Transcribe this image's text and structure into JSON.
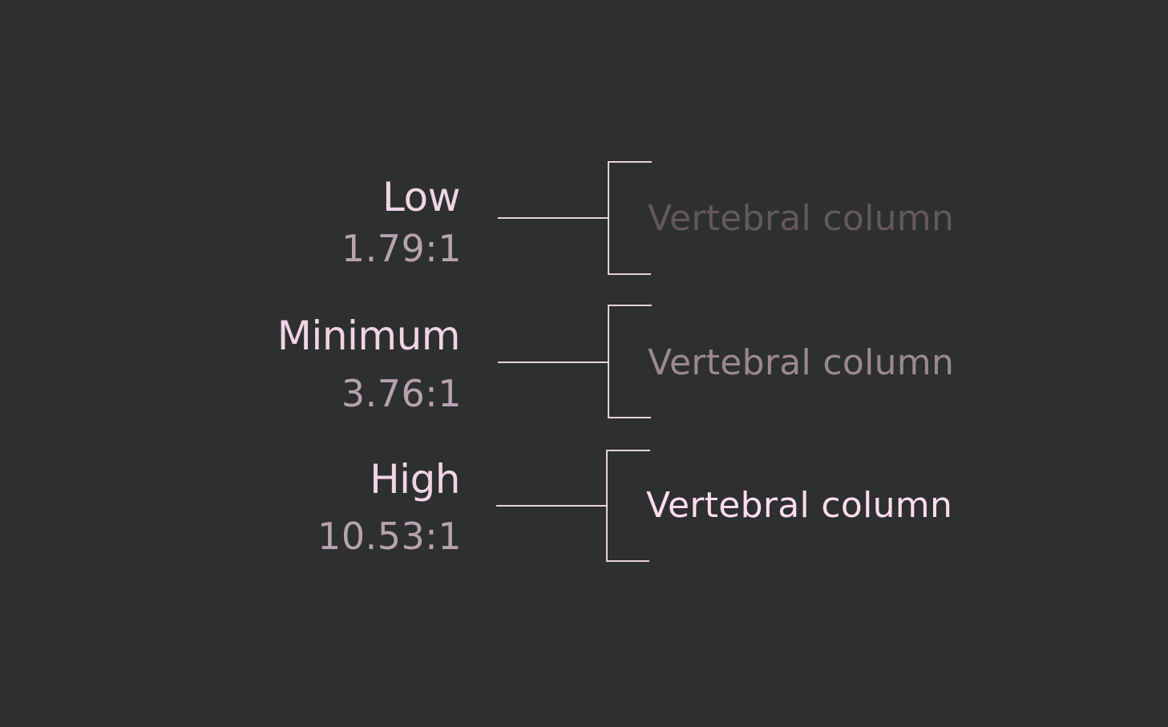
{
  "levels": [
    {
      "label": "Low",
      "ratio": "1.79:1",
      "sample_text": "Vertebral column",
      "sample_color": "#645860"
    },
    {
      "label": "Minimum",
      "ratio": "3.76:1",
      "sample_text": "Vertebral column",
      "sample_color": "#9a8892"
    },
    {
      "label": "High",
      "ratio": "10.53:1",
      "sample_text": "Vertebral column",
      "sample_color": "#ffdcf1"
    }
  ],
  "colors": {
    "background": "#2e2f2f",
    "label": "#f0d4e6",
    "ratio": "#b6a2b0",
    "line": "#e6d2de"
  }
}
